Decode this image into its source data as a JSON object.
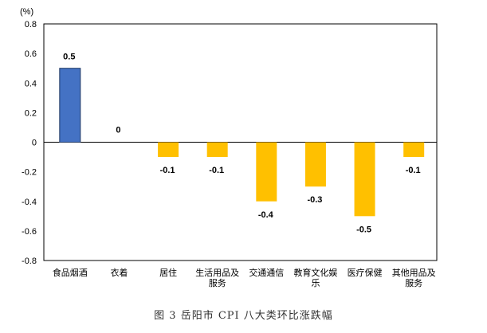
{
  "chart_data": {
    "type": "bar",
    "caption": "图 3   岳阳市 CPI 八大类环比涨跌幅",
    "unit": "(%)",
    "categories": [
      [
        "食品烟酒"
      ],
      [
        "衣着"
      ],
      [
        "居住"
      ],
      [
        "生活用品及",
        "服务"
      ],
      [
        "交通通信"
      ],
      [
        "教育文化娱",
        "乐"
      ],
      [
        "医疗保健"
      ],
      [
        "其他用品及",
        "服务"
      ]
    ],
    "values": [
      0.5,
      0,
      -0.1,
      -0.1,
      -0.4,
      -0.3,
      -0.5,
      -0.1
    ],
    "data_labels": [
      "0.5",
      "0",
      "-0.1",
      "-0.1",
      "-0.4",
      "-0.3",
      "-0.5",
      "-0.1"
    ],
    "ylim": [
      -0.8,
      0.8
    ],
    "yticks": [
      "0.8",
      "0.6",
      "0.4",
      "0.2",
      "0",
      "-0.2",
      "-0.4",
      "-0.6",
      "-0.8"
    ],
    "ytick_values": [
      0.8,
      0.6,
      0.4,
      0.2,
      0,
      -0.2,
      -0.4,
      -0.6,
      -0.8
    ],
    "grid": false,
    "colors": {
      "positive": "#4472C4",
      "positive_stroke": "#1F3864",
      "negative": "#FFC000",
      "axis": "#000000"
    }
  }
}
